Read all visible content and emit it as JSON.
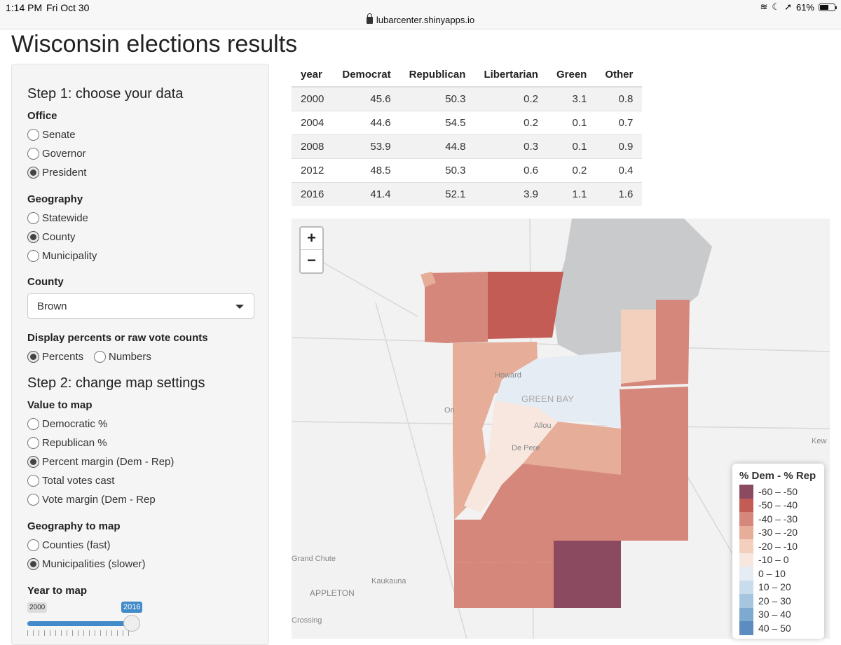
{
  "status": {
    "time": "1:14 PM",
    "date": "Fri Oct 30",
    "url": "lubarcenter.shinyapps.io",
    "battery": "61%"
  },
  "page_title": "Wisconsin elections results",
  "sidebar": {
    "step1": "Step 1: choose your data",
    "office_label": "Office",
    "office_options": [
      "Senate",
      "Governor",
      "President"
    ],
    "geography_label": "Geography",
    "geography_options": [
      "Statewide",
      "County",
      "Municipality"
    ],
    "county_label": "County",
    "county_value": "Brown",
    "display_label": "Display percents or raw vote counts",
    "display_options": [
      "Percents",
      "Numbers"
    ],
    "step2": "Step 2: change map settings",
    "value_label": "Value to map",
    "value_options": [
      "Democratic %",
      "Republican %",
      "Percent margin (Dem - Rep)",
      "Total votes cast",
      "Vote margin (Dem - Rep"
    ],
    "geomap_label": "Geography to map",
    "geomap_options": [
      "Counties (fast)",
      "Municipalities (slower)"
    ],
    "year_label": "Year to map",
    "slider_min": "2000",
    "slider_value": "2016",
    "slider_fraction": 1.0
  },
  "table": {
    "headers": [
      "year",
      "Democrat",
      "Republican",
      "Libertarian",
      "Green",
      "Other"
    ],
    "rows": [
      [
        "2000",
        "45.6",
        "50.3",
        "0.2",
        "3.1",
        "0.8"
      ],
      [
        "2004",
        "44.6",
        "54.5",
        "0.2",
        "0.1",
        "0.7"
      ],
      [
        "2008",
        "53.9",
        "44.8",
        "0.3",
        "0.1",
        "0.9"
      ],
      [
        "2012",
        "48.5",
        "50.3",
        "0.6",
        "0.2",
        "0.4"
      ],
      [
        "2016",
        "41.4",
        "52.1",
        "3.9",
        "1.1",
        "1.6"
      ]
    ]
  },
  "map": {
    "zoom_in": "+",
    "zoom_out": "−",
    "labels": {
      "green_bay": "GREEN BAY",
      "howard": "Howard",
      "allouez": "Allou",
      "de_pere": "De Pere",
      "grand_chute": "Grand Chute",
      "kaukauna": "Kaukauna",
      "appleton": "APPLETON",
      "crossing": "Crossing",
      "kewaunee": "Kew",
      "oneida": "On"
    },
    "legend_title": "% Dem - % Rep",
    "legend": [
      {
        "label": "-60 – -50",
        "color": "#8b4a5f"
      },
      {
        "label": "-50 – -40",
        "color": "#c45c56"
      },
      {
        "label": "-40 – -30",
        "color": "#d6877c"
      },
      {
        "label": "-30 – -20",
        "color": "#e6ad98"
      },
      {
        "label": "-20 – -10",
        "color": "#f3cfbd"
      },
      {
        "label": "-10 – 0",
        "color": "#f8e7df"
      },
      {
        "label": "0 – 10",
        "color": "#e6ecf4"
      },
      {
        "label": "10 – 20",
        "color": "#c9dceb"
      },
      {
        "label": "20 – 30",
        "color": "#a6c6e0"
      },
      {
        "label": "30 – 40",
        "color": "#7ea9d1"
      },
      {
        "label": "40 – 50",
        "color": "#5d8cc0"
      }
    ]
  }
}
